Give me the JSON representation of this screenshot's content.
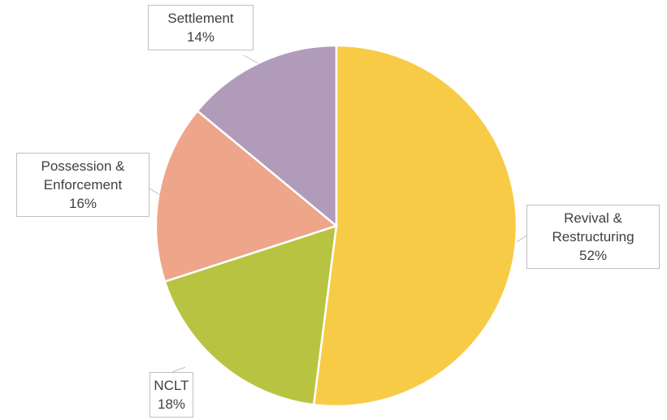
{
  "chart_data": {
    "type": "pie",
    "categories": [
      "Revival & Restructuring",
      "NCLT",
      "Possession & Enforcement",
      "Settlement"
    ],
    "values": [
      52,
      18,
      16,
      14
    ],
    "value_labels": [
      "52%",
      "18%",
      "16%",
      "14%"
    ],
    "colors": [
      "#f8cb47",
      "#b8c441",
      "#eda68a",
      "#b09cba"
    ]
  }
}
